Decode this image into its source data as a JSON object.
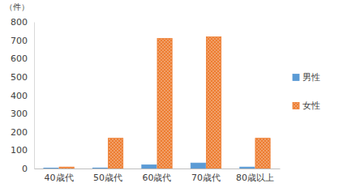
{
  "chart_data": {
    "type": "bar",
    "ylabel": "（件）",
    "categories": [
      "40歳代",
      "50歳代",
      "60歳代",
      "70歳代",
      "80歳以上"
    ],
    "series": [
      {
        "name": "男性",
        "color": "#5b9bd5",
        "values": [
          2,
          3,
          20,
          30,
          8
        ]
      },
      {
        "name": "女性",
        "color": "#ed7d31",
        "values": [
          8,
          165,
          710,
          718,
          165
        ]
      }
    ],
    "ylim": [
      0,
      800
    ],
    "yticks": [
      0,
      100,
      200,
      300,
      400,
      500,
      600,
      700,
      800
    ],
    "grid": false,
    "legend": "right"
  }
}
